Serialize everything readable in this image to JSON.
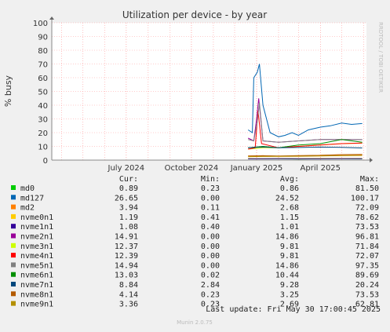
{
  "chart_data": {
    "type": "line",
    "title": "Utilization per device - by year",
    "ylabel": "% busy",
    "watermark": "RRDTOOL / TOBI OETIKER",
    "ylim": [
      0,
      100
    ],
    "yticks": [
      0,
      10,
      20,
      30,
      40,
      50,
      60,
      70,
      80,
      90,
      100
    ],
    "xlim": [
      "2024-03-18",
      "2025-06-05"
    ],
    "xticks": [
      {
        "label": "July 2024",
        "date": "2024-07-01"
      },
      {
        "label": "October 2024",
        "date": "2024-10-01"
      },
      {
        "label": "January 2025",
        "date": "2025-01-01"
      },
      {
        "label": "April 2025",
        "date": "2025-04-01"
      }
    ],
    "data_start": "2024-12-20",
    "legend_headers": {
      "cur": "Cur:",
      "min": "Min:",
      "avg": "Avg:",
      "max": "Max:"
    },
    "series": [
      {
        "name": "md0",
        "color": "#00cc00",
        "cur": "0.89",
        "min": "0.23",
        "avg": "0.86",
        "max": "81.50",
        "x": [
          "2024-12-20",
          "2025-01-10",
          "2025-02-01",
          "2025-03-01",
          "2025-04-01",
          "2025-05-01",
          "2025-05-30"
        ],
        "y": [
          1.0,
          0.9,
          1.0,
          0.8,
          0.9,
          1.0,
          0.89
        ]
      },
      {
        "name": "md127",
        "color": "#0066b3",
        "cur": "26.65",
        "min": "0.00",
        "avg": "24.52",
        "max": "100.17",
        "x": [
          "2024-12-20",
          "2024-12-26",
          "2024-12-28",
          "2025-01-02",
          "2025-01-05",
          "2025-01-10",
          "2025-01-20",
          "2025-02-01",
          "2025-02-10",
          "2025-02-20",
          "2025-03-01",
          "2025-03-15",
          "2025-04-01",
          "2025-04-15",
          "2025-05-01",
          "2025-05-15",
          "2025-05-30"
        ],
        "y": [
          22,
          20,
          60,
          64,
          70,
          40,
          20,
          17,
          18,
          20,
          18,
          22,
          24,
          25,
          27,
          26,
          26.65
        ]
      },
      {
        "name": "md2",
        "color": "#ff8000",
        "cur": "3.94",
        "min": "0.11",
        "avg": "2.68",
        "max": "72.09",
        "x": [
          "2024-12-20",
          "2025-01-10",
          "2025-02-01",
          "2025-03-01",
          "2025-04-01",
          "2025-05-01",
          "2025-05-30"
        ],
        "y": [
          3,
          3.2,
          2.8,
          3.0,
          3.5,
          3.8,
          3.94
        ]
      },
      {
        "name": "nvme0n1",
        "color": "#ffcc00",
        "cur": "1.19",
        "min": "0.41",
        "avg": "1.15",
        "max": "78.62",
        "x": [
          "2024-12-20",
          "2025-01-10",
          "2025-02-01",
          "2025-03-01",
          "2025-04-01",
          "2025-05-01",
          "2025-05-30"
        ],
        "y": [
          1.2,
          1.1,
          1.2,
          1.1,
          1.2,
          1.2,
          1.19
        ]
      },
      {
        "name": "nvme1n1",
        "color": "#330099",
        "cur": "1.08",
        "min": "0.40",
        "avg": "1.01",
        "max": "73.53",
        "x": [
          "2024-12-20",
          "2025-01-10",
          "2025-02-01",
          "2025-03-01",
          "2025-04-01",
          "2025-05-01",
          "2025-05-30"
        ],
        "y": [
          1.0,
          1.0,
          1.1,
          1.0,
          1.0,
          1.1,
          1.08
        ]
      },
      {
        "name": "nvme2n1",
        "color": "#990099",
        "cur": "14.91",
        "min": "0.00",
        "avg": "14.86",
        "max": "96.81",
        "x": [
          "2024-12-20",
          "2024-12-28",
          "2025-01-01",
          "2025-01-04",
          "2025-01-10",
          "2025-02-01",
          "2025-03-01",
          "2025-04-01",
          "2025-05-01",
          "2025-05-30"
        ],
        "y": [
          16,
          14,
          30,
          45,
          14,
          13,
          14,
          15,
          15,
          14.91
        ]
      },
      {
        "name": "nvme3n1",
        "color": "#ccff00",
        "cur": "12.37",
        "min": "0.00",
        "avg": "9.81",
        "max": "71.84",
        "x": [
          "2024-12-20",
          "2025-01-10",
          "2025-02-01",
          "2025-03-01",
          "2025-04-01",
          "2025-05-01",
          "2025-05-30"
        ],
        "y": [
          8,
          9,
          9,
          10,
          11,
          12,
          12.37
        ]
      },
      {
        "name": "nvme4n1",
        "color": "#ff0000",
        "cur": "12.39",
        "min": "0.00",
        "avg": "9.81",
        "max": "72.07",
        "x": [
          "2024-12-20",
          "2024-12-30",
          "2025-01-03",
          "2025-01-08",
          "2025-02-01",
          "2025-03-01",
          "2025-04-01",
          "2025-05-01",
          "2025-05-30"
        ],
        "y": [
          8,
          9,
          36,
          12,
          9,
          10,
          11,
          12,
          12.39
        ]
      },
      {
        "name": "nvme5n1",
        "color": "#808080",
        "cur": "14.94",
        "min": "0.00",
        "avg": "14.86",
        "max": "97.35",
        "x": [
          "2024-12-20",
          "2024-12-28",
          "2025-01-02",
          "2025-01-05",
          "2025-01-10",
          "2025-02-01",
          "2025-03-01",
          "2025-04-01",
          "2025-05-01",
          "2025-05-30"
        ],
        "y": [
          15,
          14,
          28,
          42,
          14,
          13,
          14,
          15,
          15,
          14.94
        ]
      },
      {
        "name": "nvme6n1",
        "color": "#008f00",
        "cur": "13.03",
        "min": "0.02",
        "avg": "10.44",
        "max": "89.69",
        "x": [
          "2024-12-20",
          "2025-01-10",
          "2025-02-01",
          "2025-03-01",
          "2025-04-01",
          "2025-05-01",
          "2025-05-30"
        ],
        "y": [
          9,
          10,
          9,
          11,
          12,
          15,
          13.03
        ]
      },
      {
        "name": "nvme7n1",
        "color": "#00487d",
        "cur": "8.84",
        "min": "2.84",
        "avg": "9.28",
        "max": "20.24",
        "x": [
          "2024-12-20",
          "2025-01-10",
          "2025-02-01",
          "2025-03-01",
          "2025-04-01",
          "2025-05-01",
          "2025-05-30"
        ],
        "y": [
          9,
          9.5,
          9,
          9.2,
          9.5,
          9.3,
          8.84
        ]
      },
      {
        "name": "nvme8n1",
        "color": "#b35a00",
        "cur": "4.14",
        "min": "0.23",
        "avg": "3.25",
        "max": "73.53",
        "x": [
          "2024-12-20",
          "2025-01-10",
          "2025-02-01",
          "2025-03-01",
          "2025-04-01",
          "2025-05-01",
          "2025-05-30"
        ],
        "y": [
          3,
          3.2,
          3.0,
          3.3,
          3.5,
          4.0,
          4.14
        ]
      },
      {
        "name": "nvme9n1",
        "color": "#b38f00",
        "cur": "3.36",
        "min": "0.23",
        "avg": "2.69",
        "max": "62.81",
        "x": [
          "2024-12-20",
          "2025-01-10",
          "2025-02-01",
          "2025-03-01",
          "2025-04-01",
          "2025-05-01",
          "2025-05-30"
        ],
        "y": [
          2.5,
          2.6,
          2.7,
          2.8,
          3.0,
          3.2,
          3.36
        ]
      }
    ]
  },
  "last_update": "Last update: Fri May 30 17:00:45 2025",
  "footer": "Munin 2.0.75"
}
